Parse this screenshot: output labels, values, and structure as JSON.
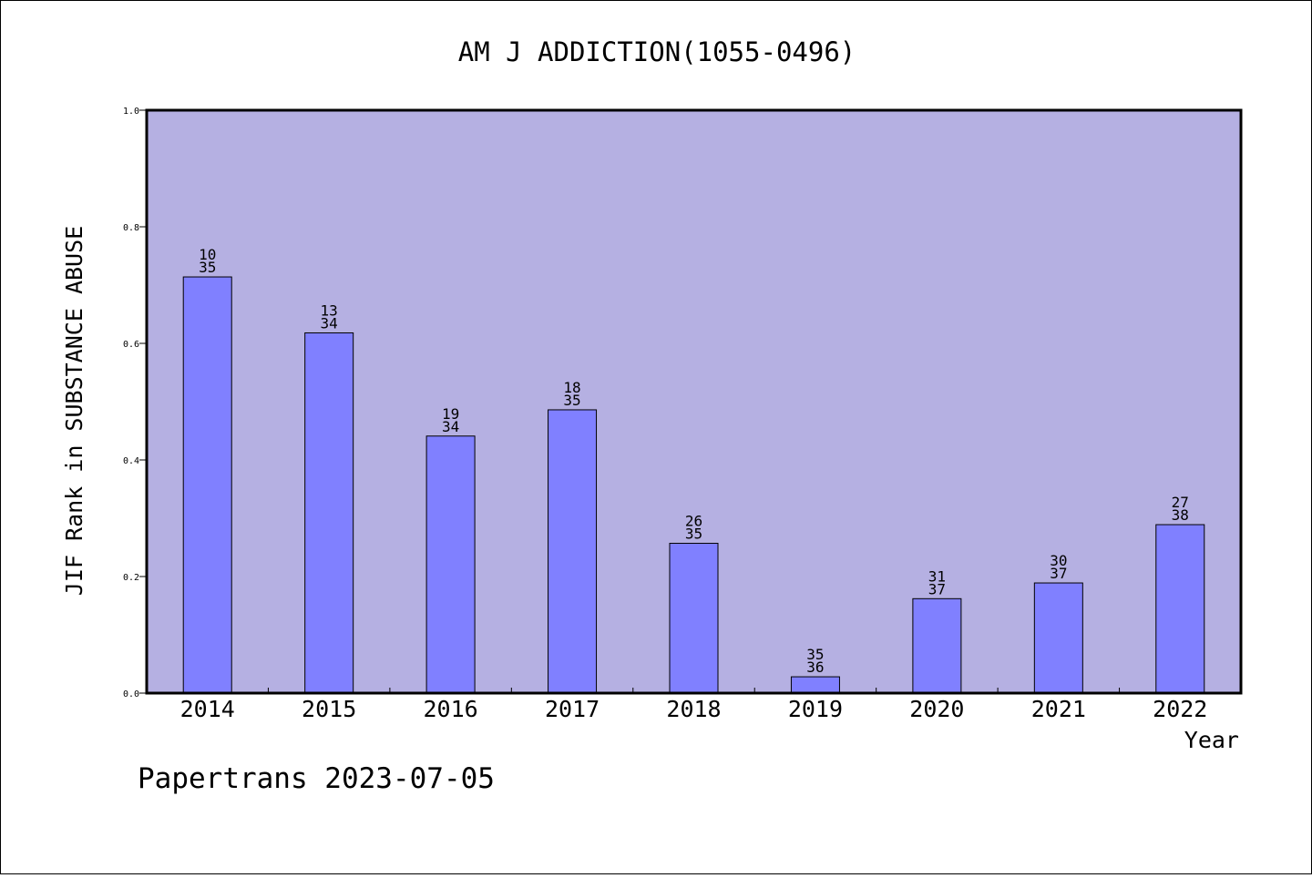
{
  "chart_data": {
    "type": "bar",
    "title": "AM J ADDICTION(1055-0496)",
    "xlabel": "Year",
    "ylabel": "JIF Rank in SUBSTANCE ABUSE",
    "ylim": [
      0,
      1.0
    ],
    "yticks": [
      "0.0",
      "0.2",
      "0.4",
      "0.6",
      "0.8",
      "1.0"
    ],
    "grid": false,
    "categories": [
      "2014",
      "2015",
      "2016",
      "2017",
      "2018",
      "2019",
      "2020",
      "2021",
      "2022"
    ],
    "values": [
      0.714,
      0.618,
      0.441,
      0.486,
      0.257,
      0.028,
      0.162,
      0.189,
      0.289
    ],
    "rank": [
      "10",
      "13",
      "19",
      "18",
      "26",
      "35",
      "31",
      "30",
      "27"
    ],
    "total": [
      "35",
      "34",
      "34",
      "35",
      "35",
      "36",
      "37",
      "37",
      "38"
    ],
    "colors": {
      "plot_background": "#b5b0e2",
      "bar_fill": "#8080ff",
      "bar_stroke": "#000000"
    }
  },
  "footer": {
    "text": "Papertrans 2023-07-05"
  }
}
